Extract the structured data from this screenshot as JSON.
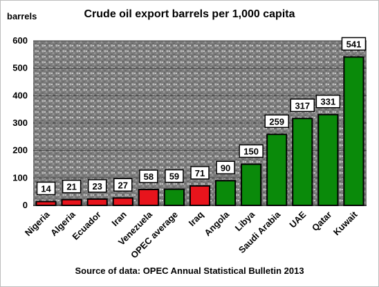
{
  "chart_data": {
    "type": "bar",
    "title": "Crude oil export barrels per 1,000 capita",
    "ylabel": "barrels",
    "source": "Source of data: OPEC Annual Statistical Bulletin 2013",
    "ylim": [
      0,
      600
    ],
    "yticks": [
      0,
      100,
      200,
      300,
      400,
      500,
      600
    ],
    "grid": true,
    "categories": [
      "Nigeria",
      "Algeria",
      "Ecuador",
      "Iran",
      "Venezuela",
      "OPEC average",
      "Iraq",
      "Angola",
      "Libya",
      "Saudi Arabia",
      "UAE",
      "Qatar",
      "Kuwait"
    ],
    "values": [
      14,
      21,
      23,
      27,
      58,
      59,
      71,
      90,
      150,
      259,
      317,
      331,
      541
    ],
    "value_labels": [
      "14",
      "21",
      "23",
      "27",
      "58",
      "59",
      "71",
      "90",
      "150",
      "259",
      "317",
      "331",
      "541"
    ],
    "bar_colors": [
      "#e8141c",
      "#e8141c",
      "#e8141c",
      "#e8141c",
      "#e8141c",
      "#0a8a0a",
      "#e8141c",
      "#0a8a0a",
      "#0a8a0a",
      "#0a8a0a",
      "#0a8a0a",
      "#0a8a0a",
      "#0a8a0a"
    ]
  }
}
